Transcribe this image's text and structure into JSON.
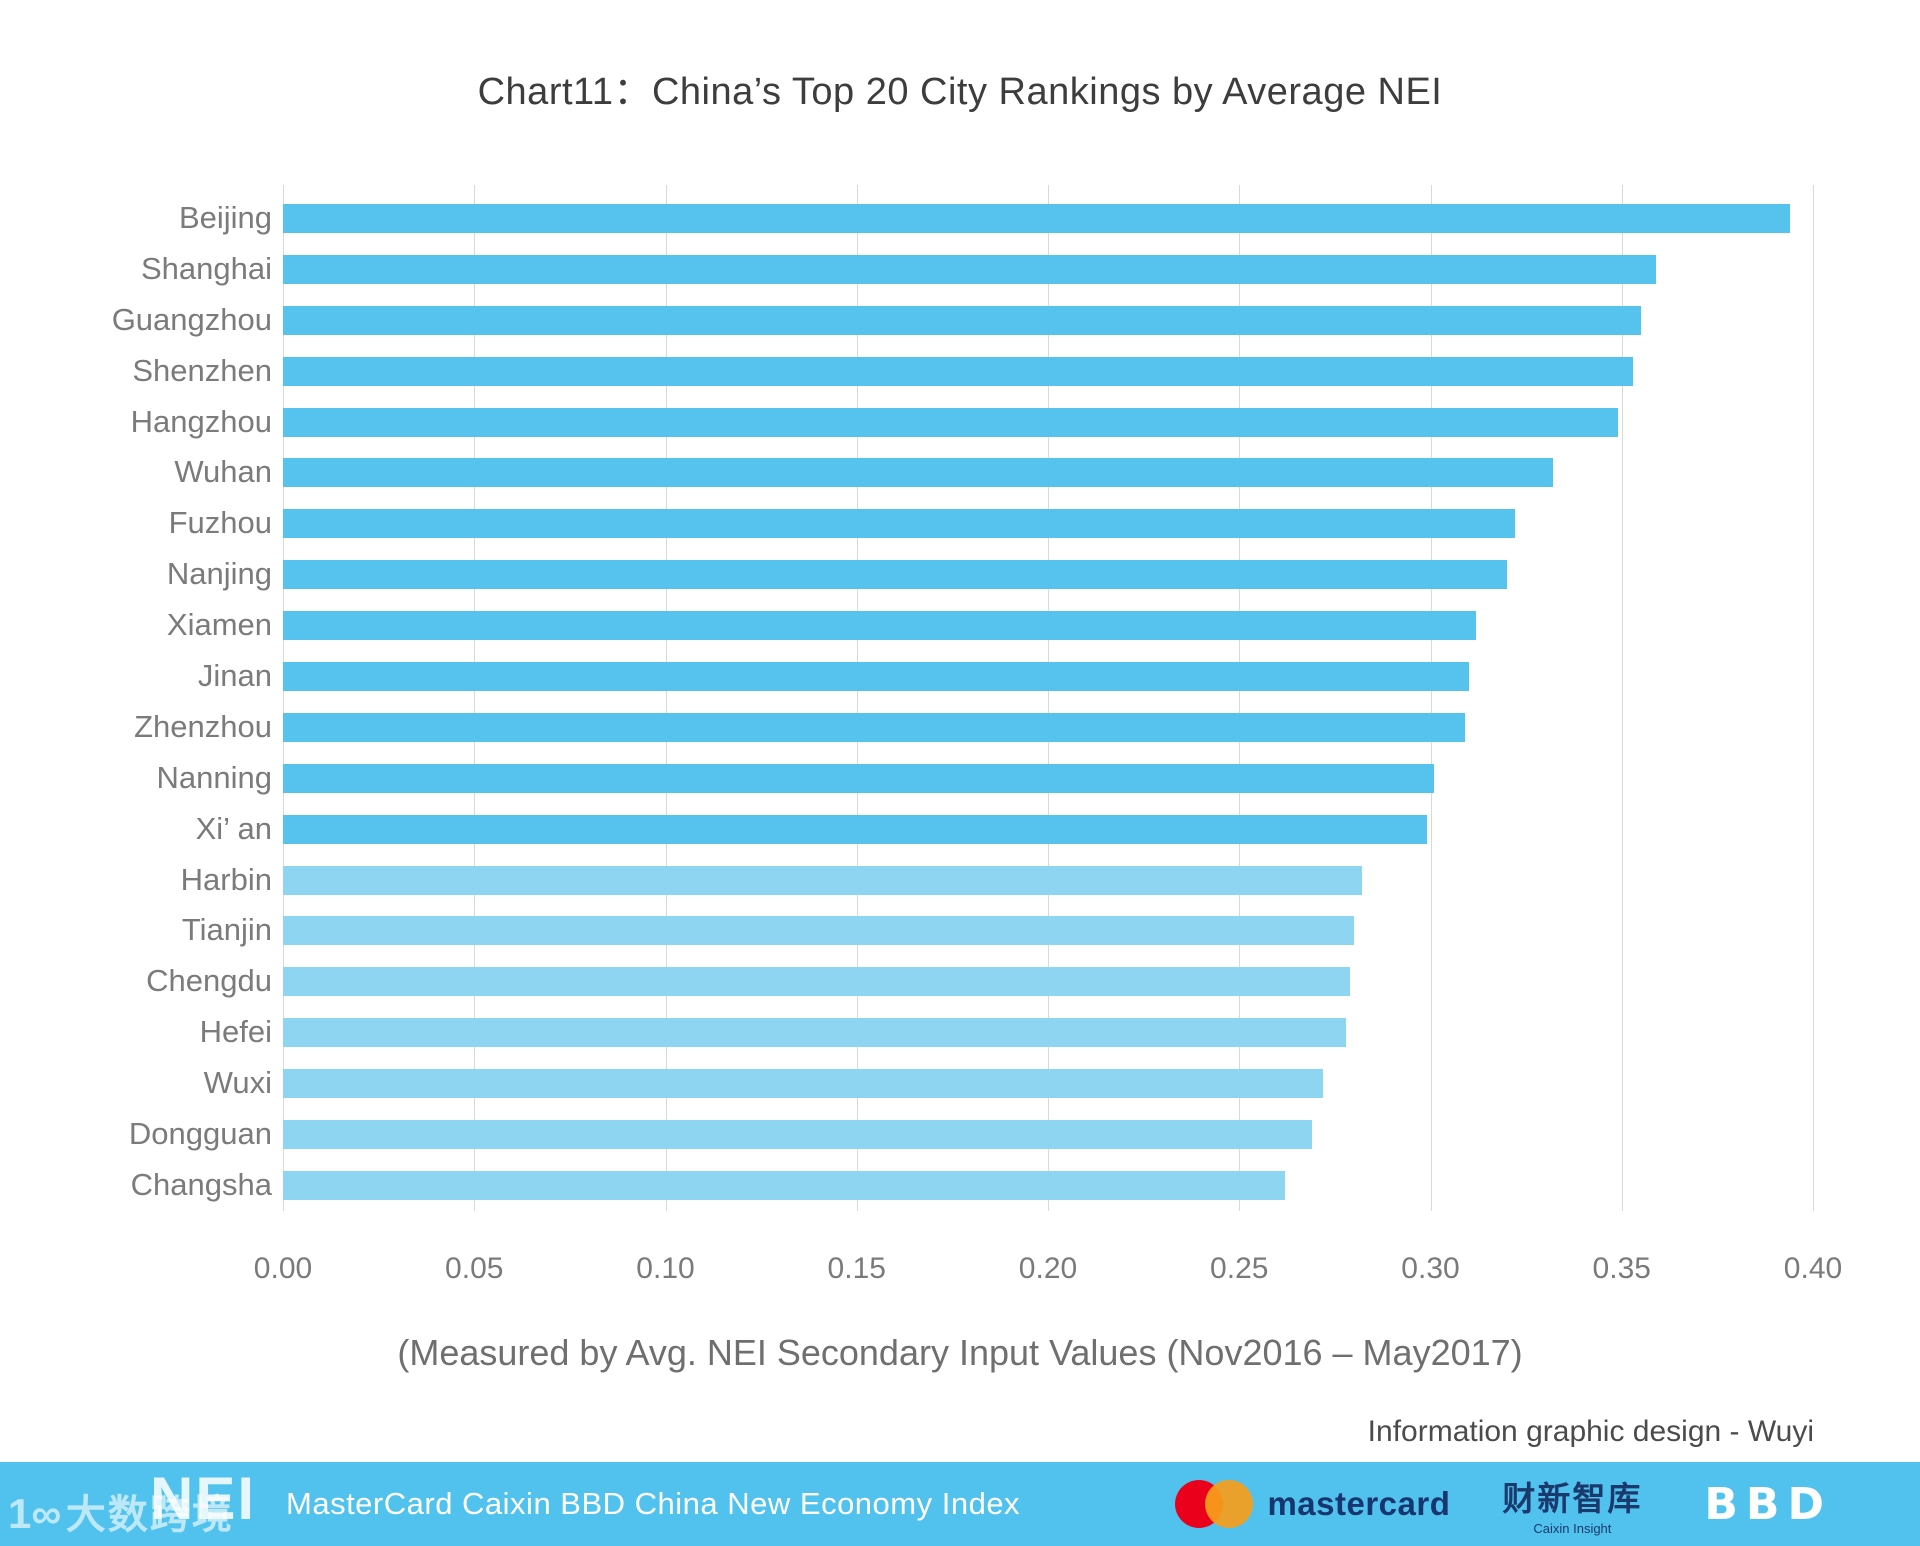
{
  "chart_data": {
    "type": "bar",
    "orientation": "horizontal",
    "title": "Chart11：China’s Top 20 City Rankings by Average NEI",
    "xlabel": "(Measured by Avg. NEI Secondary Input Values (Nov2016 – May2017)",
    "categories": [
      "Beijing",
      "Shanghai",
      "Guangzhou",
      "Shenzhen",
      "Hangzhou",
      "Wuhan",
      "Fuzhou",
      "Nanjing",
      "Xiamen",
      "Jinan",
      "Zhenzhou",
      "Nanning",
      "Xi’ an",
      "Harbin",
      "Tianjin",
      "Chengdu",
      "Hefei",
      "Wuxi",
      "Dongguan",
      "Changsha"
    ],
    "values": [
      0.394,
      0.359,
      0.355,
      0.353,
      0.349,
      0.332,
      0.322,
      0.32,
      0.312,
      0.31,
      0.309,
      0.301,
      0.299,
      0.282,
      0.28,
      0.279,
      0.278,
      0.272,
      0.269,
      0.262
    ],
    "xlim": [
      0.0,
      0.4
    ],
    "xticks": [
      "0.00",
      "0.05",
      "0.10",
      "0.15",
      "0.20",
      "0.25",
      "0.30",
      "0.35",
      "0.40"
    ],
    "grid": true,
    "legend": "none",
    "bar_color_primary": "#56c3ee",
    "bar_color_secondary": "#8ed5f2",
    "secondary_start_index": 13,
    "gridline_color": "#d9d9d9"
  },
  "credit": "Information graphic design - Wuyi",
  "footer": {
    "nei_logo": "NEI",
    "watermark_mark": "1∞",
    "watermark_text": "大数跨境",
    "title": "MasterCard Caixin BBD China New Economy Index",
    "background_color": "#51c2ed",
    "mastercard": {
      "wordmark": "mastercard",
      "circle_red": "#eb001b",
      "circle_orange": "#f79e1b",
      "wordmark_color": "#17356e"
    },
    "caixin": {
      "wordmark": "财新智库",
      "subtext": "Caixin Insight",
      "color": "#1a3a6d"
    },
    "bbd": {
      "wordmark": "BBD"
    }
  }
}
